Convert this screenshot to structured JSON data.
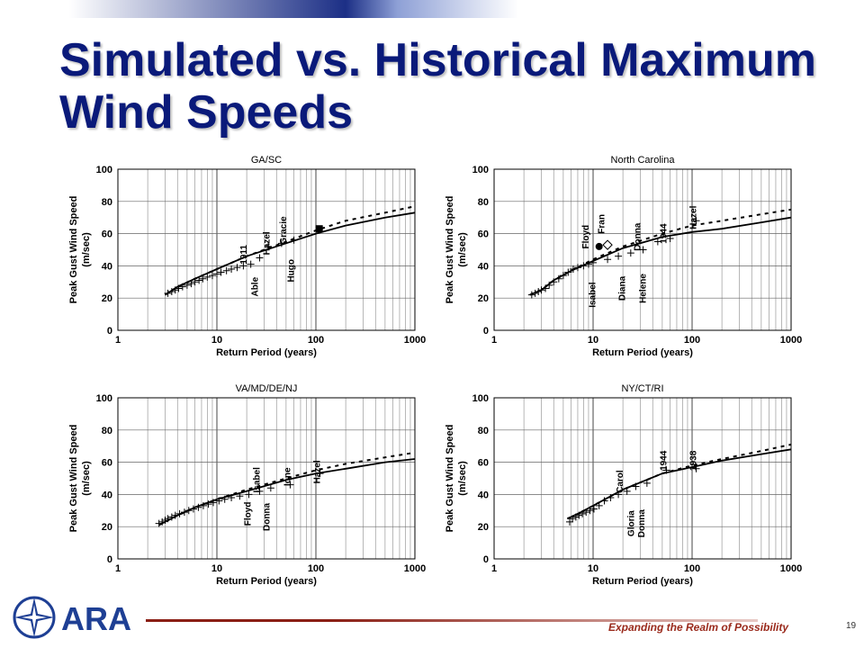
{
  "slide": {
    "title": "Simulated vs. Historical Maximum Wind Speeds",
    "slogan": "Expanding the Realm of Possibility",
    "page_number": "19",
    "logo_text": "ARA"
  },
  "colors": {
    "title": "#0a1a7a",
    "slogan": "#9a2a1c",
    "footer_line": "#8a1e14",
    "logo_blue": "#1e3f94"
  },
  "chart_data": [
    {
      "type": "line",
      "title": "GA/SC",
      "xlabel": "Return Period (years)",
      "ylabel": "Peak Gust Wind Speed\n(m/sec)",
      "xscale": "log",
      "xlim": [
        1,
        1000
      ],
      "ylim": [
        0,
        100
      ],
      "xticks": [
        "1",
        "10",
        "100",
        "1000"
      ],
      "yticks": [
        "0",
        "20",
        "40",
        "60",
        "80",
        "100"
      ],
      "series": [
        {
          "style": "solid",
          "x": [
            3,
            4,
            6,
            10,
            20,
            50,
            100,
            200,
            500,
            1000
          ],
          "y": [
            22,
            27,
            32,
            38,
            46,
            54,
            60,
            65,
            70,
            73
          ]
        },
        {
          "style": "dotted",
          "x": [
            3,
            4,
            6,
            10,
            20,
            50,
            100,
            200,
            500,
            1000
          ],
          "y": [
            22,
            27,
            32,
            38,
            46,
            55,
            62,
            68,
            73,
            77
          ]
        },
        {
          "style": "cross",
          "x": [
            3.2,
            3.5,
            3.8,
            4.1,
            4.5,
            5,
            5.5,
            6,
            6.6,
            7.2,
            8,
            9,
            10,
            11,
            12.5,
            14,
            16,
            18.5,
            22,
            27,
            33,
            45,
            60
          ],
          "y": [
            23,
            24,
            25,
            26,
            27,
            28,
            29,
            30,
            31,
            32,
            33,
            34,
            35,
            36,
            37,
            38,
            39,
            40,
            41,
            45,
            52,
            54,
            56
          ]
        }
      ],
      "markers": [
        {
          "label": "Hugo",
          "x": 108,
          "y": 63,
          "shape": "square"
        }
      ],
      "annotations": [
        {
          "text": "1911",
          "x": 20,
          "y": 47
        },
        {
          "text": "Able",
          "x": 26,
          "y": 27
        },
        {
          "text": "Hazel",
          "x": 34,
          "y": 54
        },
        {
          "text": "Gracie",
          "x": 50,
          "y": 62
        },
        {
          "text": "Hugo",
          "x": 60,
          "y": 37
        }
      ]
    },
    {
      "type": "line",
      "title": "North Carolina",
      "xlabel": "Return Period (years)",
      "ylabel": "Peak Gust Wind Speed\n(m/sec)",
      "xscale": "log",
      "xlim": [
        1,
        1000
      ],
      "ylim": [
        0,
        100
      ],
      "xticks": [
        "1",
        "10",
        "100",
        "1000"
      ],
      "yticks": [
        "0",
        "20",
        "40",
        "60",
        "80",
        "100"
      ],
      "series": [
        {
          "style": "solid",
          "x": [
            2.3,
            3,
            4,
            6,
            10,
            20,
            50,
            100,
            200,
            500,
            1000
          ],
          "y": [
            22,
            25,
            31,
            37,
            43,
            51,
            58,
            61,
            63,
            67,
            70
          ]
        },
        {
          "style": "dotted",
          "x": [
            2.3,
            3,
            4,
            6,
            10,
            20,
            50,
            100,
            200,
            500,
            1000
          ],
          "y": [
            22,
            25,
            31,
            37,
            44,
            52,
            60,
            65,
            68,
            72,
            75
          ]
        },
        {
          "style": "cross",
          "x": [
            2.4,
            2.6,
            2.8,
            3,
            3.3,
            3.6,
            4,
            4.5,
            5,
            5.6,
            6.3,
            7,
            8,
            9,
            10,
            14,
            18,
            24,
            32,
            45,
            60,
            110
          ],
          "y": [
            22,
            23,
            24,
            25,
            26,
            28,
            30,
            32,
            34,
            36,
            38,
            39,
            40,
            41,
            42,
            44,
            46,
            48,
            50,
            55,
            57,
            68
          ]
        }
      ],
      "markers": [
        {
          "label": "Fran",
          "x": 11.5,
          "y": 52,
          "shape": "circle"
        },
        {
          "label": "Isabel",
          "x": 14,
          "y": 53,
          "shape": "diamond"
        }
      ],
      "annotations": [
        {
          "text": "Floyd",
          "x": 9,
          "y": 58
        },
        {
          "text": "Fran",
          "x": 13,
          "y": 66
        },
        {
          "text": "Isabel",
          "x": 10.5,
          "y": 22
        },
        {
          "text": "Donna",
          "x": 30,
          "y": 58
        },
        {
          "text": "Diana",
          "x": 21,
          "y": 26
        },
        {
          "text": "Helene",
          "x": 34,
          "y": 26
        },
        {
          "text": "1944",
          "x": 55,
          "y": 60
        },
        {
          "text": "Hazel",
          "x": 110,
          "y": 70
        }
      ]
    },
    {
      "type": "line",
      "title": "VA/MD/DE/NJ",
      "xlabel": "Return Period (years)",
      "ylabel": "Peak Gust Wind Speed\n(m/sec)",
      "xscale": "log",
      "xlim": [
        1,
        1000
      ],
      "ylim": [
        0,
        100
      ],
      "xticks": [
        "1",
        "10",
        "100",
        "1000"
      ],
      "yticks": [
        "0",
        "20",
        "40",
        "60",
        "80",
        "100"
      ],
      "series": [
        {
          "style": "solid",
          "x": [
            2.6,
            3,
            4,
            6,
            10,
            20,
            50,
            100,
            200,
            500,
            1000
          ],
          "y": [
            21,
            23,
            27,
            32,
            37,
            42,
            49,
            53,
            56,
            60,
            62
          ]
        },
        {
          "style": "dotted",
          "x": [
            2.6,
            3,
            4,
            6,
            10,
            20,
            50,
            100,
            200,
            500,
            1000
          ],
          "y": [
            21,
            23,
            27,
            32,
            37,
            43,
            50,
            55,
            59,
            63,
            66
          ]
        },
        {
          "style": "cross",
          "x": [
            2.6,
            2.8,
            3,
            3.2,
            3.5,
            3.8,
            4.2,
            4.7,
            5.2,
            5.8,
            6.5,
            7.3,
            8.2,
            9.2,
            10.5,
            12,
            14,
            17,
            21,
            27,
            35,
            55,
            110
          ],
          "y": [
            22,
            23,
            24,
            25,
            26,
            27,
            28,
            29,
            30,
            31,
            32,
            33,
            34,
            35,
            36,
            37,
            38,
            39,
            40,
            42,
            44,
            46,
            53
          ]
        }
      ],
      "markers": [],
      "annotations": [
        {
          "text": "Floyd",
          "x": 22,
          "y": 28
        },
        {
          "text": "Isabel",
          "x": 27,
          "y": 49
        },
        {
          "text": "Donna",
          "x": 34,
          "y": 26
        },
        {
          "text": "Ione",
          "x": 55,
          "y": 51
        },
        {
          "text": "Hazel",
          "x": 110,
          "y": 54
        }
      ]
    },
    {
      "type": "line",
      "title": "NY/CT/RI",
      "xlabel": "Return Period (years)",
      "ylabel": "Peak Gust Wind Speed\n(m/sec)",
      "xscale": "log",
      "xlim": [
        1,
        1000
      ],
      "ylim": [
        0,
        100
      ],
      "xticks": [
        "1",
        "10",
        "100",
        "1000"
      ],
      "yticks": [
        "0",
        "20",
        "40",
        "60",
        "80",
        "100"
      ],
      "series": [
        {
          "style": "solid",
          "x": [
            5.5,
            7,
            10,
            20,
            50,
            100,
            200,
            500,
            1000
          ],
          "y": [
            25,
            28,
            33,
            43,
            53,
            57,
            61,
            65,
            68
          ]
        },
        {
          "style": "dotted",
          "x": [
            5.5,
            7,
            10,
            20,
            50,
            100,
            200,
            500,
            1000
          ],
          "y": [
            25,
            28,
            33,
            43,
            53,
            58,
            62,
            67,
            71
          ]
        },
        {
          "style": "cross",
          "x": [
            5.8,
            6.2,
            6.7,
            7.2,
            7.8,
            8.5,
            9.3,
            10.2,
            11.5,
            13,
            15,
            18,
            22,
            27,
            35,
            55,
            110
          ],
          "y": [
            23,
            25,
            26,
            27,
            28,
            29,
            30,
            31,
            33,
            36,
            38,
            40,
            42,
            45,
            47,
            55,
            56
          ]
        }
      ],
      "markers": [],
      "annotations": [
        {
          "text": "Carol",
          "x": 20,
          "y": 48
        },
        {
          "text": "Gloria",
          "x": 26,
          "y": 22
        },
        {
          "text": "Donna",
          "x": 33,
          "y": 22
        },
        {
          "text": "1944",
          "x": 55,
          "y": 61
        },
        {
          "text": "1938",
          "x": 110,
          "y": 61
        }
      ]
    }
  ]
}
